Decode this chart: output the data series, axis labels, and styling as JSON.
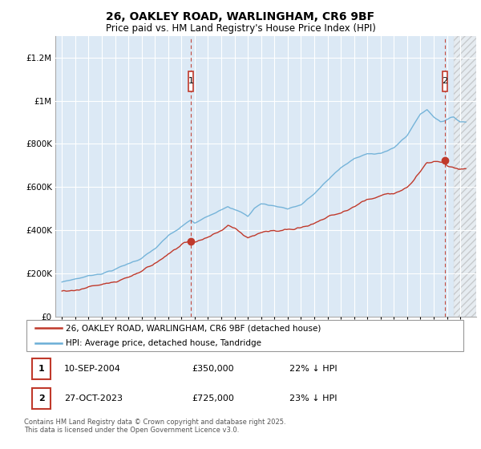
{
  "title": "26, OAKLEY ROAD, WARLINGHAM, CR6 9BF",
  "subtitle": "Price paid vs. HM Land Registry's House Price Index (HPI)",
  "legend_line1": "26, OAKLEY ROAD, WARLINGHAM, CR6 9BF (detached house)",
  "legend_line2": "HPI: Average price, detached house, Tandridge",
  "transaction1_label": "1",
  "transaction1_date": "10-SEP-2004",
  "transaction1_price": "£350,000",
  "transaction1_note": "22% ↓ HPI",
  "transaction2_label": "2",
  "transaction2_date": "27-OCT-2023",
  "transaction2_price": "£725,000",
  "transaction2_note": "23% ↓ HPI",
  "footer": "Contains HM Land Registry data © Crown copyright and database right 2025.\nThis data is licensed under the Open Government Licence v3.0.",
  "hpi_color": "#6aaed6",
  "price_color": "#c0392b",
  "vline_color": "#c0392b",
  "chart_bg": "#dce9f5",
  "background_color": "#ffffff",
  "ylim": [
    0,
    1300000
  ],
  "xmin": 1994.5,
  "xmax": 2026.2,
  "transaction1_x": 2004.7,
  "transaction1_y": 350000,
  "transaction2_x": 2023.83,
  "transaction2_y": 725000
}
